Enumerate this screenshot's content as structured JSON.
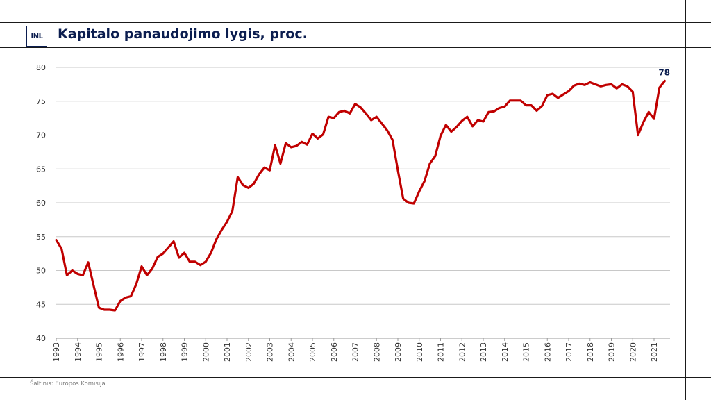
{
  "title": "Kapitalo panaudojimo lygis, proc.",
  "logo_text": "INL",
  "source": "Šaltinis: Europos Komisija",
  "colors": {
    "line": "#c00000",
    "title": "#0b1d4f",
    "grid": "#c8c8c8",
    "frame": "#1a1a1a"
  },
  "chart_data": {
    "type": "line",
    "title": "Kapitalo panaudojimo lygis, proc.",
    "xlabel": "",
    "ylabel": "",
    "ylim": [
      40,
      80
    ],
    "yticks": [
      40,
      45,
      50,
      55,
      60,
      65,
      70,
      75,
      80
    ],
    "xticks": [
      "1993",
      "1994",
      "1995",
      "1996",
      "1997",
      "1998",
      "1999",
      "2000",
      "2001",
      "2002",
      "2003",
      "2004",
      "2005",
      "2006",
      "2007",
      "2008",
      "2009",
      "2010",
      "2011",
      "2012",
      "2013",
      "2014",
      "2015",
      "2016",
      "2017",
      "2018",
      "2019",
      "2020",
      "2021"
    ],
    "grid": true,
    "frequency": "quarterly",
    "series": [
      {
        "name": "",
        "start": "1993Q1",
        "values": [
          54.5,
          53.2,
          49.3,
          50.0,
          49.5,
          49.3,
          51.2,
          47.8,
          44.5,
          44.2,
          44.2,
          44.1,
          45.5,
          46.0,
          46.2,
          48.0,
          50.6,
          49.3,
          50.3,
          52.0,
          52.5,
          53.4,
          54.3,
          51.9,
          52.6,
          51.3,
          51.3,
          50.8,
          51.3,
          52.6,
          54.6,
          56.0,
          57.2,
          58.8,
          63.8,
          62.6,
          62.2,
          62.8,
          64.2,
          65.2,
          64.8,
          68.5,
          65.8,
          68.8,
          68.2,
          68.4,
          69.0,
          68.6,
          70.2,
          69.5,
          70.1,
          72.7,
          72.5,
          73.4,
          73.6,
          73.2,
          74.6,
          74.1,
          73.2,
          72.2,
          72.7,
          71.7,
          70.7,
          69.3,
          64.8,
          60.6,
          60.0,
          59.9,
          61.7,
          63.2,
          65.8,
          66.9,
          69.9,
          71.5,
          70.5,
          71.2,
          72.1,
          72.7,
          71.3,
          72.2,
          72.0,
          73.4,
          73.5,
          74.0,
          74.2,
          75.1,
          75.1,
          75.1,
          74.4,
          74.4,
          73.6,
          74.3,
          75.9,
          76.1,
          75.5,
          76.0,
          76.5,
          77.3,
          77.6,
          77.4,
          77.8,
          77.5,
          77.2,
          77.4,
          77.5,
          76.9,
          77.5,
          77.2,
          76.4,
          70.0,
          71.9,
          73.4,
          72.4,
          77.0,
          78.0
        ]
      }
    ],
    "last_value_label": "78"
  }
}
